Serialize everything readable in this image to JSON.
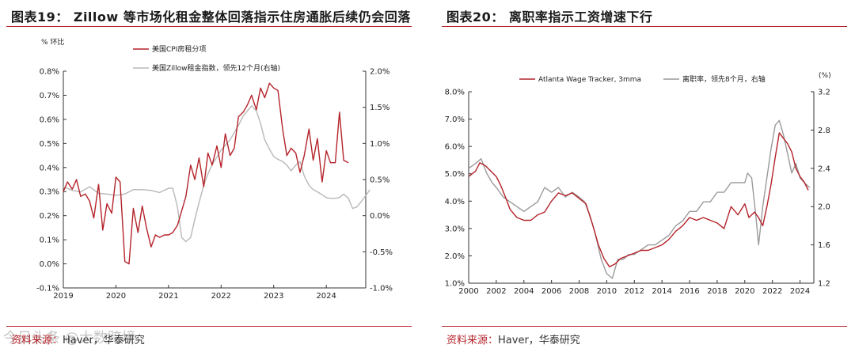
{
  "left": {
    "title": "图表19： Zillow 等市场化租金整体回落指示住房通胀后续仍会回落",
    "source": "资料来源：Haver，华泰研究",
    "source_label": "资料来源：",
    "source_text": "Haver，华泰研究",
    "watermark": "今日头条 @大数跨境",
    "chart_data": {
      "type": "line",
      "ylabel_left": "% 环比",
      "xlim": [
        2019,
        2024.75
      ],
      "ylim_left": [
        -0.1,
        0.8
      ],
      "ylim_right": [
        -1.0,
        2.0
      ],
      "x_ticks": [
        "2019",
        "2020",
        "2021",
        "2022",
        "2023",
        "2024"
      ],
      "y_ticks_left": [
        "-0.1%",
        "0.0%",
        "0.1%",
        "0.2%",
        "0.3%",
        "0.4%",
        "0.5%",
        "0.6%",
        "0.7%",
        "0.8%"
      ],
      "y_ticks_right": [
        "-1.0%",
        "-0.5%",
        "0.0%",
        "0.5%",
        "1.0%",
        "1.5%",
        "2.0%"
      ],
      "series": [
        {
          "name": "美国CPI房租分项",
          "color": "#b4232a",
          "axis": "left",
          "points": [
            [
              2019.0,
              0.3
            ],
            [
              2019.08,
              0.34
            ],
            [
              2019.17,
              0.31
            ],
            [
              2019.25,
              0.35
            ],
            [
              2019.33,
              0.28
            ],
            [
              2019.42,
              0.29
            ],
            [
              2019.5,
              0.26
            ],
            [
              2019.58,
              0.19
            ],
            [
              2019.67,
              0.33
            ],
            [
              2019.75,
              0.14
            ],
            [
              2019.83,
              0.25
            ],
            [
              2019.92,
              0.21
            ],
            [
              2020.0,
              0.36
            ],
            [
              2020.08,
              0.34
            ],
            [
              2020.17,
              0.01
            ],
            [
              2020.25,
              0.0
            ],
            [
              2020.33,
              0.23
            ],
            [
              2020.42,
              0.13
            ],
            [
              2020.5,
              0.24
            ],
            [
              2020.58,
              0.15
            ],
            [
              2020.67,
              0.07
            ],
            [
              2020.75,
              0.12
            ],
            [
              2020.83,
              0.11
            ],
            [
              2020.92,
              0.12
            ],
            [
              2021.0,
              0.12
            ],
            [
              2021.08,
              0.13
            ],
            [
              2021.17,
              0.16
            ],
            [
              2021.25,
              0.22
            ],
            [
              2021.33,
              0.28
            ],
            [
              2021.42,
              0.41
            ],
            [
              2021.5,
              0.35
            ],
            [
              2021.58,
              0.44
            ],
            [
              2021.67,
              0.32
            ],
            [
              2021.75,
              0.46
            ],
            [
              2021.83,
              0.41
            ],
            [
              2021.92,
              0.49
            ],
            [
              2022.0,
              0.4
            ],
            [
              2022.08,
              0.54
            ],
            [
              2022.17,
              0.45
            ],
            [
              2022.25,
              0.48
            ],
            [
              2022.33,
              0.61
            ],
            [
              2022.42,
              0.63
            ],
            [
              2022.5,
              0.66
            ],
            [
              2022.58,
              0.7
            ],
            [
              2022.67,
              0.64
            ],
            [
              2022.75,
              0.73
            ],
            [
              2022.83,
              0.69
            ],
            [
              2022.92,
              0.75
            ],
            [
              2023.0,
              0.73
            ],
            [
              2023.08,
              0.72
            ],
            [
              2023.17,
              0.56
            ],
            [
              2023.25,
              0.45
            ],
            [
              2023.33,
              0.48
            ],
            [
              2023.42,
              0.46
            ],
            [
              2023.5,
              0.38
            ],
            [
              2023.58,
              0.45
            ],
            [
              2023.67,
              0.56
            ],
            [
              2023.75,
              0.43
            ],
            [
              2023.83,
              0.52
            ],
            [
              2023.92,
              0.34
            ],
            [
              2024.0,
              0.47
            ],
            [
              2024.08,
              0.42
            ],
            [
              2024.17,
              0.42
            ],
            [
              2024.25,
              0.63
            ],
            [
              2024.33,
              0.43
            ],
            [
              2024.42,
              0.42
            ]
          ]
        },
        {
          "name": "美国Zillow租金指数，领先12个月(右轴)",
          "color": "#b8b8b8",
          "axis": "right",
          "points": [
            [
              2019.0,
              0.4
            ],
            [
              2019.17,
              0.35
            ],
            [
              2019.33,
              0.33
            ],
            [
              2019.5,
              0.4
            ],
            [
              2019.67,
              0.31
            ],
            [
              2019.83,
              0.3
            ],
            [
              2020.0,
              0.28
            ],
            [
              2020.17,
              0.3
            ],
            [
              2020.33,
              0.36
            ],
            [
              2020.5,
              0.36
            ],
            [
              2020.67,
              0.35
            ],
            [
              2020.83,
              0.32
            ],
            [
              2021.0,
              0.38
            ],
            [
              2021.08,
              0.38
            ],
            [
              2021.17,
              0.12
            ],
            [
              2021.25,
              -0.3
            ],
            [
              2021.33,
              -0.36
            ],
            [
              2021.42,
              -0.3
            ],
            [
              2021.5,
              -0.05
            ],
            [
              2021.58,
              0.18
            ],
            [
              2021.67,
              0.42
            ],
            [
              2021.75,
              0.58
            ],
            [
              2021.83,
              0.71
            ],
            [
              2021.92,
              0.81
            ],
            [
              2022.0,
              0.91
            ],
            [
              2022.17,
              1.05
            ],
            [
              2022.33,
              1.25
            ],
            [
              2022.42,
              1.38
            ],
            [
              2022.5,
              1.45
            ],
            [
              2022.58,
              1.52
            ],
            [
              2022.67,
              1.45
            ],
            [
              2022.75,
              1.28
            ],
            [
              2022.83,
              1.05
            ],
            [
              2022.92,
              0.92
            ],
            [
              2023.0,
              0.82
            ],
            [
              2023.08,
              0.78
            ],
            [
              2023.17,
              0.75
            ],
            [
              2023.25,
              0.7
            ],
            [
              2023.33,
              0.62
            ],
            [
              2023.42,
              0.7
            ],
            [
              2023.5,
              0.75
            ],
            [
              2023.58,
              0.55
            ],
            [
              2023.67,
              0.42
            ],
            [
              2023.75,
              0.36
            ],
            [
              2023.83,
              0.33
            ],
            [
              2023.92,
              0.29
            ],
            [
              2024.0,
              0.25
            ],
            [
              2024.08,
              0.24
            ],
            [
              2024.17,
              0.24
            ],
            [
              2024.25,
              0.25
            ],
            [
              2024.33,
              0.3
            ],
            [
              2024.42,
              0.24
            ],
            [
              2024.5,
              0.1
            ],
            [
              2024.58,
              0.12
            ],
            [
              2024.67,
              0.2
            ],
            [
              2024.75,
              0.28
            ],
            [
              2024.83,
              0.36
            ]
          ]
        }
      ]
    }
  },
  "right": {
    "title": "图表20： 离职率指示工资增速下行",
    "source": "资料来源：Haver，华泰研究",
    "source_label": "资料来源：",
    "source_text": "Haver，华泰研究",
    "chart_data": {
      "type": "line",
      "ylabel_right": "(%)",
      "xlim": [
        2000,
        2025
      ],
      "ylim_left": [
        1.0,
        8.0
      ],
      "ylim_right": [
        1.2,
        3.2
      ],
      "x_ticks": [
        "2000",
        "2002",
        "2004",
        "2006",
        "2008",
        "2010",
        "2012",
        "2014",
        "2016",
        "2018",
        "2020",
        "2022",
        "2024"
      ],
      "y_ticks_left": [
        "1.0%",
        "2.0%",
        "3.0%",
        "4.0%",
        "5.0%",
        "6.0%",
        "7.0%",
        "8.0%"
      ],
      "y_ticks_right": [
        "1.2",
        "1.6",
        "2.0",
        "2.4",
        "2.8",
        "3.2"
      ],
      "series": [
        {
          "name": "Atlanta Wage Tracker, 3mma",
          "color": "#b4232a",
          "axis": "left",
          "points": [
            [
              2000.0,
              4.9
            ],
            [
              2000.5,
              5.1
            ],
            [
              2000.8,
              5.4
            ],
            [
              2001.2,
              5.3
            ],
            [
              2001.6,
              5.1
            ],
            [
              2002.0,
              4.9
            ],
            [
              2002.3,
              4.6
            ],
            [
              2002.7,
              4.1
            ],
            [
              2003.0,
              3.7
            ],
            [
              2003.5,
              3.4
            ],
            [
              2004.0,
              3.3
            ],
            [
              2004.5,
              3.3
            ],
            [
              2005.0,
              3.5
            ],
            [
              2005.5,
              3.6
            ],
            [
              2006.0,
              4.0
            ],
            [
              2006.5,
              4.3
            ],
            [
              2007.0,
              4.2
            ],
            [
              2007.5,
              4.3
            ],
            [
              2008.0,
              4.1
            ],
            [
              2008.5,
              3.9
            ],
            [
              2009.0,
              3.1
            ],
            [
              2009.4,
              2.4
            ],
            [
              2009.8,
              1.9
            ],
            [
              2010.2,
              1.6
            ],
            [
              2010.6,
              1.7
            ],
            [
              2011.0,
              1.9
            ],
            [
              2011.5,
              2.0
            ],
            [
              2012.0,
              2.1
            ],
            [
              2012.5,
              2.2
            ],
            [
              2013.0,
              2.2
            ],
            [
              2013.5,
              2.3
            ],
            [
              2014.0,
              2.4
            ],
            [
              2014.5,
              2.6
            ],
            [
              2015.0,
              2.9
            ],
            [
              2015.5,
              3.1
            ],
            [
              2016.0,
              3.4
            ],
            [
              2016.5,
              3.3
            ],
            [
              2017.0,
              3.4
            ],
            [
              2017.5,
              3.3
            ],
            [
              2018.0,
              3.2
            ],
            [
              2018.5,
              3.0
            ],
            [
              2019.0,
              3.8
            ],
            [
              2019.5,
              3.5
            ],
            [
              2020.0,
              3.9
            ],
            [
              2020.3,
              3.4
            ],
            [
              2020.7,
              3.6
            ],
            [
              2021.0,
              3.4
            ],
            [
              2021.3,
              3.1
            ],
            [
              2021.6,
              3.8
            ],
            [
              2021.9,
              4.6
            ],
            [
              2022.2,
              5.6
            ],
            [
              2022.5,
              6.5
            ],
            [
              2022.8,
              6.3
            ],
            [
              2023.1,
              6.1
            ],
            [
              2023.4,
              5.8
            ],
            [
              2023.7,
              5.2
            ],
            [
              2024.0,
              4.9
            ],
            [
              2024.3,
              4.7
            ],
            [
              2024.6,
              4.4
            ]
          ]
        },
        {
          "name": "离职率，领先8个月，右轴",
          "color": "#9a9a9a",
          "axis": "right",
          "points": [
            [
              2000.0,
              2.4
            ],
            [
              2000.5,
              2.45
            ],
            [
              2000.9,
              2.5
            ],
            [
              2001.3,
              2.35
            ],
            [
              2001.7,
              2.25
            ],
            [
              2002.0,
              2.2
            ],
            [
              2002.5,
              2.1
            ],
            [
              2003.0,
              2.05
            ],
            [
              2003.5,
              2.0
            ],
            [
              2004.0,
              1.95
            ],
            [
              2004.5,
              2.0
            ],
            [
              2005.0,
              2.05
            ],
            [
              2005.5,
              2.2
            ],
            [
              2006.0,
              2.15
            ],
            [
              2006.5,
              2.2
            ],
            [
              2007.0,
              2.1
            ],
            [
              2007.5,
              2.15
            ],
            [
              2008.0,
              2.1
            ],
            [
              2008.4,
              2.05
            ],
            [
              2008.8,
              1.9
            ],
            [
              2009.2,
              1.7
            ],
            [
              2009.6,
              1.45
            ],
            [
              2010.0,
              1.3
            ],
            [
              2010.4,
              1.25
            ],
            [
              2010.8,
              1.45
            ],
            [
              2011.2,
              1.45
            ],
            [
              2011.6,
              1.5
            ],
            [
              2012.0,
              1.5
            ],
            [
              2012.5,
              1.55
            ],
            [
              2013.0,
              1.6
            ],
            [
              2013.5,
              1.6
            ],
            [
              2014.0,
              1.65
            ],
            [
              2014.5,
              1.7
            ],
            [
              2015.0,
              1.8
            ],
            [
              2015.5,
              1.85
            ],
            [
              2016.0,
              1.95
            ],
            [
              2016.5,
              1.95
            ],
            [
              2017.0,
              2.05
            ],
            [
              2017.5,
              2.05
            ],
            [
              2018.0,
              2.15
            ],
            [
              2018.5,
              2.15
            ],
            [
              2019.0,
              2.25
            ],
            [
              2019.5,
              2.25
            ],
            [
              2020.0,
              2.25
            ],
            [
              2020.2,
              2.35
            ],
            [
              2020.5,
              2.3
            ],
            [
              2020.8,
              1.9
            ],
            [
              2021.0,
              1.6
            ],
            [
              2021.3,
              2.0
            ],
            [
              2021.6,
              2.3
            ],
            [
              2021.9,
              2.6
            ],
            [
              2022.2,
              2.85
            ],
            [
              2022.5,
              2.9
            ],
            [
              2022.8,
              2.75
            ],
            [
              2023.1,
              2.55
            ],
            [
              2023.4,
              2.35
            ],
            [
              2023.7,
              2.45
            ],
            [
              2024.0,
              2.3
            ],
            [
              2024.3,
              2.25
            ],
            [
              2024.7,
              2.2
            ]
          ]
        }
      ]
    }
  }
}
